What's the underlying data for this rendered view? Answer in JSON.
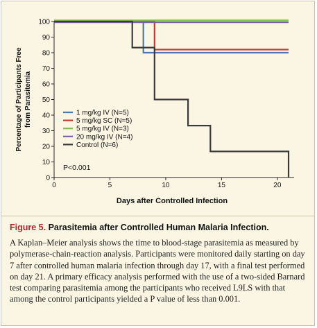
{
  "chart_data": {
    "type": "line",
    "step": true,
    "xlabel": "Days after Controlled Infection",
    "ylabel": [
      "Percentage of Participants Free",
      "from Parasitemia"
    ],
    "xlim": [
      0,
      21.5
    ],
    "ylim": [
      0,
      100
    ],
    "xticks": [
      0,
      5,
      10,
      15,
      20
    ],
    "yticks": [
      0,
      10,
      20,
      30,
      40,
      50,
      60,
      70,
      80,
      90,
      100
    ],
    "grid": false,
    "legend_position": "lower-left",
    "annotation": "P<0.001",
    "series": [
      {
        "name": "1 mg/kg IV (N=5)",
        "color": "#4a78b5",
        "x": [
          0,
          8,
          8,
          21
        ],
        "y": [
          100,
          100,
          80,
          80
        ]
      },
      {
        "name": "5 mg/kg SC (N=5)",
        "color": "#c83a2e",
        "x": [
          0,
          9,
          9,
          21
        ],
        "y": [
          100,
          100,
          82,
          82
        ]
      },
      {
        "name": "5 mg/kg IV (N=3)",
        "color": "#7fbf4a",
        "x": [
          0,
          21
        ],
        "y": [
          100.7,
          100.7
        ]
      },
      {
        "name": "20 mg/kg IV (N=4)",
        "color": "#7b5fa8",
        "x": [
          0,
          21
        ],
        "y": [
          99.5,
          99.5
        ]
      },
      {
        "name": "Control (N=6)",
        "color": "#3a3a3a",
        "x": [
          0,
          7,
          7,
          9,
          9,
          12,
          12,
          14,
          14,
          21,
          21
        ],
        "y": [
          100,
          100,
          83.3,
          83.3,
          50,
          50,
          33.3,
          33.3,
          16.7,
          16.7,
          0
        ]
      }
    ]
  },
  "caption": {
    "label": "Figure 5.",
    "title": "Parasitemia after Controlled Human Malaria Infection.",
    "body": "A Kaplan–Meier analysis shows the time to blood-stage parasitemia as measured by polymerase-chain-reaction analysis. Participants were monitored daily starting on day 7 after controlled human malaria infection through day 17, with a final test performed on day 21. A primary efficacy analysis performed with the use of a two-sided Barnard test comparing parasitemia among the participants who received L9LS with that among the control participants yielded a P value of less than 0.001."
  }
}
